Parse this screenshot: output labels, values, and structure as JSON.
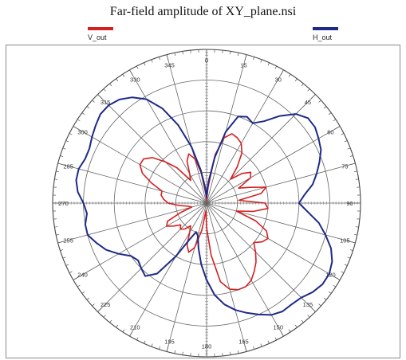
{
  "chart_data": {
    "type": "polar-line",
    "title": "Far-field amplitude of XY_plane.nsi",
    "angle_ticks": [
      "0",
      "15",
      "30",
      "45",
      "60",
      "75",
      "90",
      "105",
      "120",
      "135",
      "150",
      "165",
      "180",
      "195",
      "210",
      "225",
      "240",
      "255",
      "270",
      "285",
      "300",
      "315",
      "330",
      "345"
    ],
    "radial_range": [
      0,
      1
    ],
    "radial_rings": 5,
    "angle_direction": "clockwise",
    "zero_at": "top",
    "grid": true,
    "legend_placement": "top",
    "series": [
      {
        "name": "V_out",
        "color": "#d42020",
        "theta": [
          0,
          5,
          10,
          15,
          20,
          25,
          30,
          35,
          40,
          45,
          50,
          55,
          60,
          65,
          70,
          75,
          80,
          85,
          90,
          95,
          100,
          105,
          110,
          115,
          120,
          125,
          130,
          135,
          140,
          145,
          150,
          155,
          160,
          165,
          170,
          175,
          180,
          185,
          190,
          195,
          200,
          205,
          210,
          215,
          220,
          225,
          230,
          235,
          240,
          245,
          250,
          255,
          260,
          265,
          270,
          275,
          280,
          285,
          290,
          295,
          300,
          305,
          310,
          315,
          320,
          325,
          330,
          335,
          340,
          345,
          350,
          355,
          360
        ],
        "r": [
          0.02,
          0.1,
          0.32,
          0.44,
          0.48,
          0.47,
          0.45,
          0.4,
          0.31,
          0.22,
          0.3,
          0.35,
          0.33,
          0.23,
          0.3,
          0.4,
          0.36,
          0.21,
          0.38,
          0.4,
          0.31,
          0.2,
          0.34,
          0.43,
          0.46,
          0.44,
          0.4,
          0.45,
          0.5,
          0.54,
          0.58,
          0.6,
          0.6,
          0.58,
          0.52,
          0.34,
          0.16,
          0.05,
          0.18,
          0.3,
          0.34,
          0.3,
          0.22,
          0.18,
          0.22,
          0.24,
          0.22,
          0.26,
          0.3,
          0.28,
          0.18,
          0.1,
          0.12,
          0.18,
          0.25,
          0.28,
          0.3,
          0.3,
          0.38,
          0.46,
          0.5,
          0.5,
          0.46,
          0.38,
          0.3,
          0.18,
          0.22,
          0.3,
          0.34,
          0.3,
          0.2,
          0.06,
          0.02
        ]
      },
      {
        "name": "H_out",
        "color": "#1e2a88",
        "theta": [
          0,
          5,
          10,
          15,
          20,
          25,
          30,
          35,
          40,
          45,
          50,
          55,
          60,
          65,
          70,
          75,
          80,
          85,
          90,
          95,
          100,
          105,
          110,
          115,
          120,
          125,
          130,
          135,
          140,
          145,
          150,
          155,
          160,
          165,
          170,
          175,
          180,
          185,
          190,
          195,
          200,
          205,
          210,
          215,
          220,
          225,
          230,
          235,
          240,
          245,
          250,
          255,
          260,
          265,
          270,
          275,
          280,
          285,
          290,
          295,
          300,
          305,
          310,
          315,
          320,
          325,
          330,
          335,
          340,
          345,
          350,
          355,
          360
        ],
        "r": [
          0.04,
          0.14,
          0.3,
          0.48,
          0.6,
          0.62,
          0.6,
          0.65,
          0.74,
          0.82,
          0.86,
          0.86,
          0.84,
          0.82,
          0.78,
          0.74,
          0.7,
          0.64,
          0.6,
          0.66,
          0.74,
          0.8,
          0.86,
          0.9,
          0.92,
          0.92,
          0.9,
          0.87,
          0.86,
          0.86,
          0.84,
          0.8,
          0.76,
          0.72,
          0.67,
          0.6,
          0.5,
          0.4,
          0.3,
          0.22,
          0.2,
          0.26,
          0.4,
          0.56,
          0.62,
          0.6,
          0.58,
          0.6,
          0.66,
          0.72,
          0.76,
          0.8,
          0.8,
          0.78,
          0.8,
          0.84,
          0.86,
          0.86,
          0.84,
          0.84,
          0.86,
          0.88,
          0.9,
          0.9,
          0.88,
          0.84,
          0.78,
          0.68,
          0.54,
          0.38,
          0.22,
          0.1,
          0.04
        ]
      }
    ]
  }
}
